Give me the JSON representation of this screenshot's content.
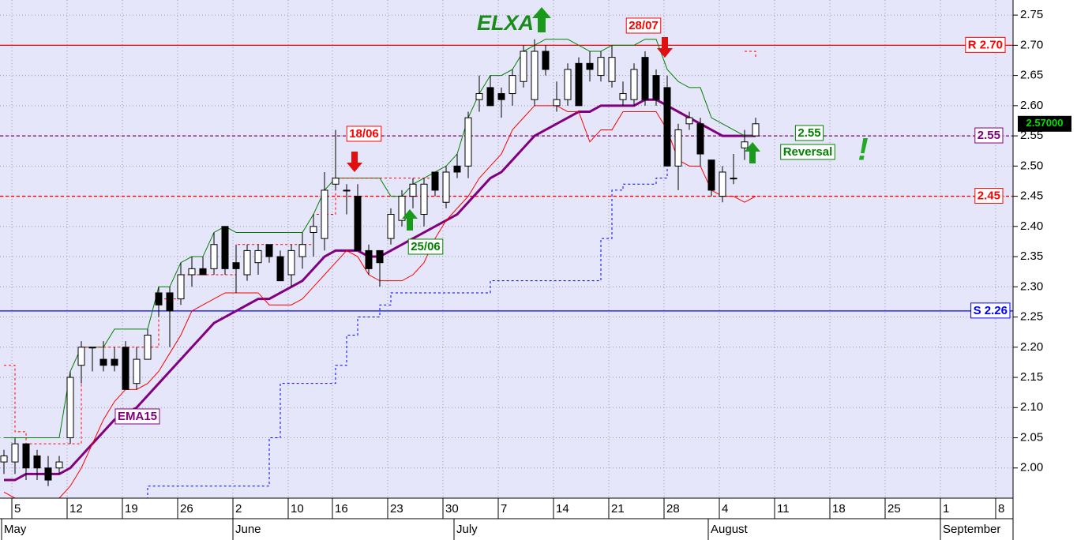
{
  "chart_data": {
    "type": "candlestick",
    "title": "ELXA",
    "ylim": [
      1.95,
      2.775
    ],
    "yticks": [
      {
        "value": 2,
        "label": "2.00"
      },
      2.05,
      {
        "value": 2.1,
        "label": "2.10"
      },
      2.15,
      {
        "value": 2.2,
        "label": "2.20"
      },
      2.25,
      {
        "value": 2.3,
        "label": "2.30"
      },
      2.35,
      {
        "value": 2.4,
        "label": "2.40"
      },
      2.45,
      {
        "value": 2.5,
        "label": "2.50"
      },
      2.55,
      {
        "value": 2.6,
        "label": "2.60"
      },
      2.65,
      {
        "value": 2.7,
        "label": "2.70"
      },
      2.75
    ],
    "grid": true,
    "categories": [
      null,
      "5",
      null,
      null,
      null,
      null,
      "12",
      null,
      null,
      null,
      null,
      "19",
      null,
      null,
      null,
      null,
      "26",
      null,
      null,
      null,
      null,
      "2",
      null,
      null,
      null,
      null,
      "10",
      null,
      null,
      null,
      "16",
      null,
      null,
      null,
      null,
      "23",
      null,
      null,
      null,
      null,
      "30",
      null,
      null,
      null,
      null,
      "7",
      null,
      null,
      null,
      null,
      "14",
      null,
      null,
      null,
      null,
      "21",
      null,
      null,
      null,
      null,
      "28",
      null,
      null,
      null,
      null,
      "4",
      null,
      null,
      null,
      null,
      "11",
      null,
      null,
      null,
      null,
      "18",
      null,
      null,
      null,
      null,
      "25",
      null,
      null,
      null,
      null,
      "1",
      null,
      null,
      null,
      null,
      "8"
    ],
    "months": [
      "May",
      null,
      null,
      null,
      null,
      null,
      null,
      null,
      null,
      null,
      null,
      null,
      null,
      null,
      null,
      null,
      null,
      null,
      null,
      null,
      null,
      "June",
      null,
      null,
      null,
      null,
      null,
      null,
      null,
      null,
      null,
      null,
      null,
      null,
      null,
      null,
      null,
      null,
      null,
      null,
      null,
      "July",
      null,
      null,
      null,
      null,
      null,
      null,
      null,
      null,
      null,
      null,
      null,
      null,
      null,
      null,
      null,
      null,
      null,
      null,
      null,
      null,
      null,
      null,
      "August",
      null,
      null,
      null,
      null,
      null,
      null,
      null,
      null,
      null,
      null,
      null,
      null,
      null,
      null,
      null,
      null,
      null,
      null,
      null,
      null,
      "September",
      null,
      null,
      null,
      null,
      null
    ],
    "open": [
      2.01,
      2.01,
      2.04,
      2.02,
      2.0,
      2.0,
      2.05,
      2.17,
      2.2,
      2.18,
      2.18,
      2.2,
      2.14,
      2.18,
      2.29,
      2.29,
      2.28,
      2.32,
      2.33,
      2.33,
      2.4,
      2.34,
      2.32,
      2.34,
      2.37,
      2.35,
      2.32,
      2.35,
      2.39,
      2.38,
      2.47,
      2.46,
      2.45,
      2.36,
      2.36,
      2.38,
      2.41,
      2.45,
      2.42,
      2.49,
      2.44,
      2.5,
      2.5,
      2.61,
      2.63,
      2.62,
      2.62,
      2.64,
      2.61,
      2.69,
      2.6,
      2.61,
      2.67,
      2.67,
      2.65,
      2.64,
      2.61,
      2.61,
      2.68,
      2.65,
      2.63,
      2.5,
      2.57,
      2.57,
      2.51,
      2.45,
      2.48,
      2.53,
      2.55,
      null,
      null,
      null,
      null,
      null,
      null,
      null,
      null,
      null,
      null,
      null,
      null,
      null,
      null,
      null,
      null,
      null,
      null,
      null,
      null,
      null,
      null
    ],
    "high": [
      2.03,
      2.05,
      2.04,
      2.03,
      2.02,
      2.02,
      2.16,
      2.21,
      2.2,
      2.21,
      2.2,
      2.21,
      2.2,
      2.23,
      2.3,
      2.3,
      2.34,
      2.35,
      2.35,
      2.39,
      2.4,
      2.37,
      2.37,
      2.37,
      2.37,
      2.36,
      2.37,
      2.39,
      2.42,
      2.49,
      2.56,
      2.47,
      2.47,
      2.37,
      2.36,
      2.43,
      2.46,
      2.48,
      2.48,
      2.49,
      2.5,
      2.52,
      2.59,
      2.65,
      2.65,
      2.63,
      2.66,
      2.7,
      2.71,
      2.7,
      2.64,
      2.67,
      2.68,
      2.69,
      2.69,
      2.7,
      2.64,
      2.67,
      2.69,
      2.66,
      2.65,
      2.57,
      2.59,
      2.58,
      2.51,
      2.5,
      2.52,
      2.56,
      2.58,
      null,
      null,
      null,
      null,
      null,
      null,
      null,
      null,
      null,
      null,
      null,
      null,
      null,
      null,
      null,
      null,
      null,
      null,
      null,
      null,
      null,
      null
    ],
    "low": [
      1.99,
      1.99,
      1.98,
      1.98,
      1.97,
      1.99,
      2.04,
      2.14,
      2.16,
      2.16,
      2.16,
      2.13,
      2.13,
      2.18,
      2.25,
      2.2,
      2.27,
      2.3,
      2.32,
      2.32,
      2.32,
      2.29,
      2.31,
      2.32,
      2.34,
      2.31,
      2.3,
      2.33,
      2.35,
      2.36,
      2.46,
      2.42,
      2.36,
      2.32,
      2.3,
      2.37,
      2.4,
      2.43,
      2.4,
      2.45,
      2.43,
      2.48,
      2.48,
      2.59,
      2.6,
      2.58,
      2.6,
      2.63,
      2.6,
      2.65,
      2.59,
      2.6,
      2.6,
      2.64,
      2.64,
      2.63,
      2.6,
      2.6,
      2.6,
      2.6,
      2.5,
      2.46,
      2.56,
      2.5,
      2.45,
      2.44,
      2.47,
      2.51,
      2.55,
      null,
      null,
      null,
      null,
      null,
      null,
      null,
      null,
      null,
      null,
      null,
      null,
      null,
      null,
      null,
      null,
      null,
      null,
      null,
      null,
      null,
      null
    ],
    "close": [
      2.02,
      2.04,
      2.0,
      2.0,
      1.98,
      2.01,
      2.15,
      2.2,
      2.2,
      2.17,
      2.17,
      2.13,
      2.18,
      2.22,
      2.27,
      2.26,
      2.32,
      2.33,
      2.32,
      2.37,
      2.33,
      2.33,
      2.36,
      2.36,
      2.35,
      2.31,
      2.36,
      2.37,
      2.4,
      2.46,
      2.48,
      2.46,
      2.36,
      2.33,
      2.34,
      2.42,
      2.45,
      2.47,
      2.47,
      2.46,
      2.49,
      2.49,
      2.58,
      2.62,
      2.6,
      2.61,
      2.65,
      2.69,
      2.69,
      2.66,
      2.61,
      2.66,
      2.6,
      2.66,
      2.68,
      2.68,
      2.62,
      2.66,
      2.61,
      2.61,
      2.5,
      2.56,
      2.58,
      2.52,
      2.46,
      2.49,
      2.48,
      2.54,
      2.57,
      null,
      null,
      null,
      null,
      null,
      null,
      null,
      null,
      null,
      null,
      null,
      null,
      null,
      null,
      null,
      null,
      null,
      null,
      null,
      null,
      null,
      null
    ],
    "series": [
      {
        "name": "EMA15",
        "color": "#800080",
        "style": "solid",
        "width": 3,
        "values": [
          1.98,
          1.98,
          1.99,
          1.99,
          1.99,
          1.99,
          2.0,
          2.02,
          2.04,
          2.06,
          2.08,
          2.09,
          2.1,
          2.12,
          2.14,
          2.16,
          2.18,
          2.2,
          2.22,
          2.24,
          2.25,
          2.26,
          2.27,
          2.28,
          2.28,
          2.29,
          2.3,
          2.31,
          2.33,
          2.35,
          2.36,
          2.36,
          2.36,
          2.35,
          2.35,
          2.36,
          2.37,
          2.38,
          2.39,
          2.4,
          2.41,
          2.42,
          2.44,
          2.46,
          2.48,
          2.49,
          2.51,
          2.53,
          2.55,
          2.56,
          2.57,
          2.58,
          2.59,
          2.59,
          2.6,
          2.6,
          2.6,
          2.6,
          2.61,
          2.61,
          2.6,
          2.59,
          2.58,
          2.57,
          2.56,
          2.55,
          2.55,
          2.55,
          2.55,
          null,
          null,
          null,
          null,
          null,
          null,
          null,
          null,
          null,
          null,
          null,
          null,
          null,
          null,
          null,
          null,
          null,
          null,
          null,
          null,
          null,
          null
        ]
      },
      {
        "color": "#008000",
        "style": "solid",
        "width": 1,
        "values": [
          2.05,
          2.05,
          2.05,
          2.05,
          2.05,
          2.05,
          2.16,
          2.2,
          2.2,
          2.2,
          2.23,
          2.23,
          2.23,
          2.23,
          2.3,
          2.3,
          2.34,
          2.35,
          2.35,
          2.39,
          2.4,
          2.39,
          2.39,
          2.39,
          2.39,
          2.39,
          2.39,
          2.39,
          2.42,
          2.46,
          2.48,
          2.48,
          2.48,
          2.48,
          2.48,
          2.45,
          2.45,
          2.47,
          2.48,
          2.49,
          2.5,
          2.52,
          2.58,
          2.62,
          2.65,
          2.65,
          2.66,
          2.69,
          2.7,
          2.71,
          2.71,
          2.71,
          2.7,
          2.69,
          2.69,
          2.7,
          2.7,
          2.7,
          2.71,
          2.71,
          2.66,
          2.64,
          2.63,
          2.63,
          2.58,
          2.57,
          2.56,
          2.55,
          2.55,
          null,
          null,
          null,
          null,
          null,
          null,
          null,
          null,
          null,
          null,
          null,
          null,
          null,
          null,
          null,
          null,
          null,
          null,
          null,
          null,
          null,
          null
        ]
      },
      {
        "color": "#ff0000",
        "style": "solid",
        "width": 1,
        "values": [
          1.96,
          1.95,
          1.95,
          1.95,
          1.95,
          1.95,
          1.97,
          2.0,
          2.04,
          2.08,
          2.11,
          2.13,
          2.13,
          2.14,
          2.16,
          2.19,
          2.22,
          2.26,
          2.27,
          2.28,
          2.29,
          2.29,
          2.29,
          2.29,
          2.27,
          2.27,
          2.27,
          2.28,
          2.3,
          2.32,
          2.34,
          2.36,
          2.35,
          2.32,
          2.31,
          2.31,
          2.31,
          2.32,
          2.34,
          2.38,
          2.41,
          2.43,
          2.45,
          2.48,
          2.5,
          2.52,
          2.56,
          2.58,
          2.6,
          2.6,
          2.6,
          2.59,
          2.59,
          2.54,
          2.56,
          2.56,
          2.59,
          2.59,
          2.59,
          2.59,
          2.56,
          2.51,
          2.5,
          2.5,
          2.46,
          2.45,
          2.45,
          2.44,
          2.45,
          null,
          null,
          null,
          null,
          null,
          null,
          null,
          null,
          null,
          null,
          null,
          null,
          null,
          null,
          null,
          null,
          null,
          null,
          null,
          null,
          null,
          null
        ]
      },
      {
        "color": "#ff0000",
        "style": "dotted",
        "width": 1,
        "values": [
          2.17,
          2.06,
          2.04,
          2.04,
          2.04,
          2.04,
          2.04,
          2.2,
          2.2,
          2.2,
          2.2,
          2.2,
          2.2,
          2.2,
          2.28,
          2.28,
          2.32,
          2.32,
          2.32,
          2.32,
          2.32,
          2.37,
          2.37,
          2.37,
          2.37,
          2.37,
          2.37,
          2.37,
          2.42,
          2.42,
          2.48,
          2.48,
          2.48,
          2.48,
          2.48,
          2.48,
          2.48,
          2.48,
          2.48,
          2.48,
          null,
          null,
          null,
          null,
          null,
          null,
          null,
          null,
          null,
          null,
          null,
          null,
          null,
          null,
          null,
          null,
          null,
          null,
          null,
          null,
          null,
          null,
          null,
          null,
          null,
          null,
          null,
          2.69,
          2.68,
          null,
          null,
          null,
          null,
          null,
          null,
          null,
          null,
          null,
          null,
          null,
          null,
          null,
          null,
          null,
          null,
          null,
          null,
          null,
          null,
          null,
          null
        ]
      },
      {
        "color": "#0000ff",
        "style": "dotted",
        "width": 1,
        "values": [
          null,
          null,
          null,
          null,
          null,
          null,
          null,
          null,
          null,
          null,
          null,
          null,
          1.95,
          1.97,
          1.97,
          1.97,
          1.97,
          1.97,
          1.97,
          1.97,
          1.97,
          1.97,
          1.97,
          1.97,
          2.05,
          2.14,
          2.14,
          2.14,
          2.14,
          2.14,
          2.17,
          2.22,
          2.25,
          2.25,
          2.27,
          2.29,
          2.29,
          2.29,
          2.29,
          2.29,
          2.29,
          2.29,
          2.29,
          2.29,
          2.31,
          2.31,
          2.31,
          2.31,
          2.31,
          2.31,
          2.31,
          2.31,
          2.31,
          2.31,
          2.38,
          2.46,
          2.47,
          2.47,
          2.47,
          2.48,
          2.5,
          null,
          null,
          null,
          null,
          null,
          null,
          null,
          null,
          null,
          null,
          null,
          null,
          null,
          null,
          null,
          null,
          null,
          null,
          null,
          null,
          null,
          null,
          null,
          null,
          null,
          null,
          null,
          null,
          null,
          null
        ]
      }
    ],
    "levels": [
      {
        "label": "R 2.70",
        "value": 2.7,
        "color": "#ff0000",
        "style": "solid"
      },
      {
        "label": "2.55",
        "value": 2.55,
        "color": "#800080",
        "style": "dashed"
      },
      {
        "label": "2.45",
        "value": 2.45,
        "color": "#ff0000",
        "style": "dashed"
      },
      {
        "label": "S 2.26",
        "value": 2.26,
        "color": "#0000ff",
        "style": "solid"
      }
    ],
    "last": {
      "value": 2.57,
      "label": "2.57000"
    },
    "annotations": [
      {
        "text": "18/06",
        "color": "#ff0000"
      },
      {
        "text": "25/06",
        "color": "#008000"
      },
      {
        "text": "28/07",
        "color": "#ff0000"
      },
      {
        "text": "EMA15",
        "color": "#800080"
      },
      {
        "text": "2.55",
        "color": "#008000"
      },
      {
        "text": "Reversal",
        "color": "#008000"
      },
      {
        "text": "!",
        "color": "#22aa22"
      }
    ]
  }
}
